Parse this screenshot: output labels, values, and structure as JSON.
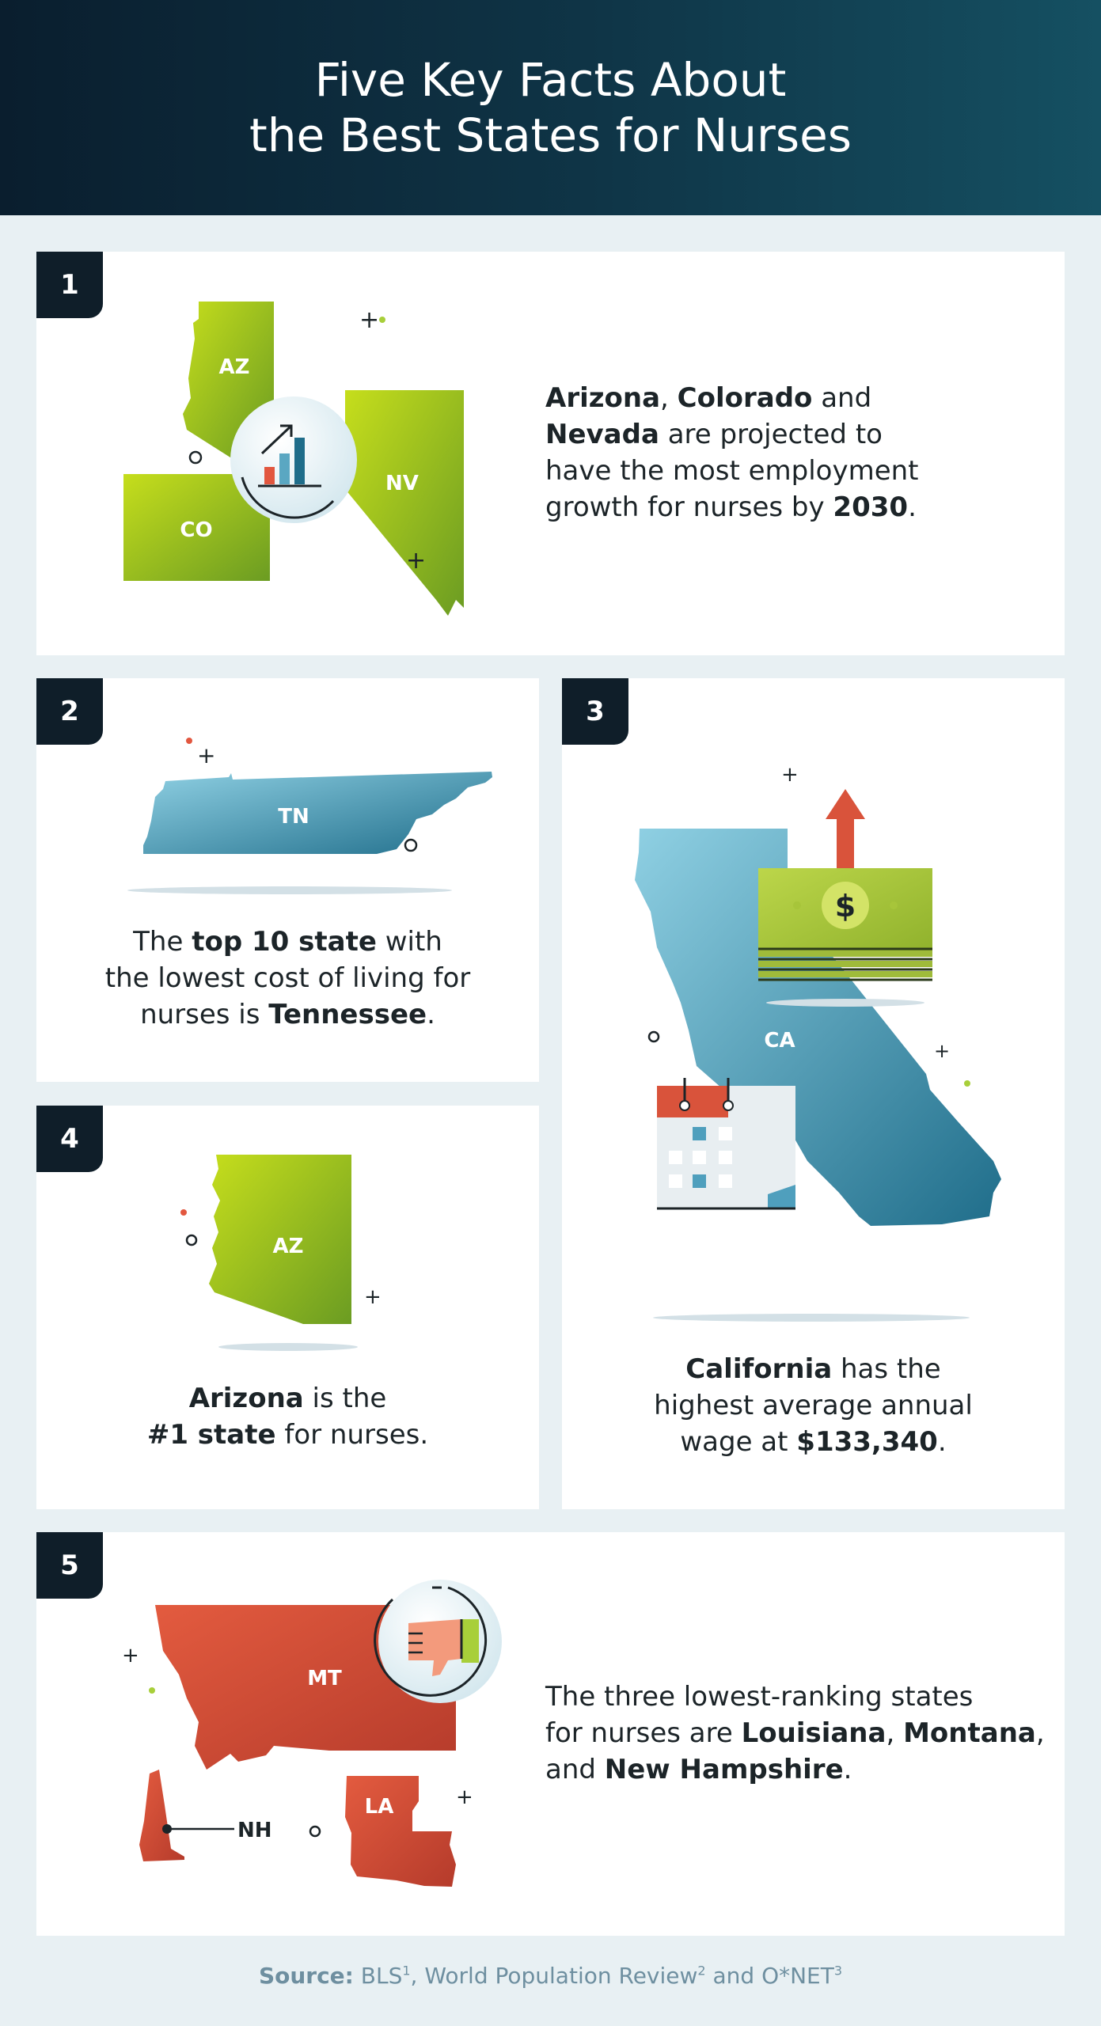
{
  "header": {
    "title_line1": "Five Key Facts About",
    "title_line2": "the Best States for Nurses"
  },
  "fact1": {
    "number": "1",
    "map_labels": [
      "AZ",
      "NV",
      "CO"
    ],
    "icon": "growth-chart-icon",
    "text": {
      "s1": "Arizona",
      "s2": ", ",
      "s3": "Colorado",
      "s4": " and",
      "s5": "Nevada",
      "s6": " are projected to",
      "s7": "have the most employment",
      "s8": "growth for nurses by ",
      "s9": "2030",
      "s10": "."
    }
  },
  "fact2": {
    "number": "2",
    "map_label": "TN",
    "text": {
      "s1": "The ",
      "s2": "top 10 state",
      "s3": " with",
      "s4": "the lowest cost of living for",
      "s5": "nurses is ",
      "s6": "Tennessee",
      "s7": "."
    }
  },
  "fact3": {
    "number": "3",
    "map_label": "CA",
    "icons": [
      "money-stack-icon",
      "calendar-icon",
      "arrow-up-icon"
    ],
    "money_symbol": "$",
    "text": {
      "s1": "California",
      "s2": " has the",
      "s3": "highest average annual",
      "s4": "wage at ",
      "s5": "$133,340",
      "s6": "."
    }
  },
  "fact4": {
    "number": "4",
    "map_label": "AZ",
    "text": {
      "s1": "Arizona",
      "s2": " is the",
      "s3": "#1 state",
      "s4": " for nurses."
    }
  },
  "fact5": {
    "number": "5",
    "map_labels": [
      "MT",
      "NH",
      "LA"
    ],
    "icon": "thumbs-down-icon",
    "text": {
      "s1": "The three lowest-ranking states",
      "s2": "for nurses are ",
      "s3": "Louisiana",
      "s4": ", ",
      "s5": "Montana",
      "s6": ",",
      "s7": "and ",
      "s8": "New Hampshire",
      "s9": "."
    }
  },
  "source": {
    "label": "Source:",
    "s1": " BLS",
    "sup1": "1",
    "s2": ", World Population Review",
    "sup2": "2",
    "s3": " and O*NET",
    "sup3": "3"
  },
  "colors": {
    "header_dark": "#0a1e2e",
    "background": "#e8f0f3",
    "green": "#8dbf1f",
    "blue": "#4f9fbd",
    "red": "#d9533b",
    "badge": "#0f1e29"
  }
}
